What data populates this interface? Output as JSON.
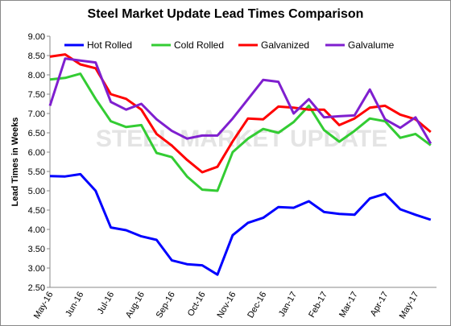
{
  "chart_data": {
    "type": "line",
    "title": "Steel Market Update Lead Times Comparison",
    "y_label": "Lead Times in Weeks",
    "watermark": "STEEL MARKET UPDATE",
    "categories": [
      "May-16",
      null,
      "Jun-16",
      null,
      "Jul-16",
      null,
      "Aug-16",
      null,
      "Sep-16",
      null,
      "Oct-16",
      null,
      "Nov-16",
      null,
      "Dec-16",
      null,
      "Jan-17",
      null,
      "Feb-17",
      null,
      "Mar-17",
      null,
      "Apr-17",
      null,
      "May-17",
      null
    ],
    "series": [
      {
        "name": "Hot Rolled",
        "color": "#0000ff",
        "values": [
          5.38,
          5.37,
          5.43,
          5.0,
          4.05,
          3.98,
          3.82,
          3.73,
          3.2,
          3.1,
          3.07,
          2.83,
          3.85,
          4.17,
          4.3,
          4.58,
          4.56,
          4.73,
          4.45,
          4.4,
          4.38,
          4.8,
          4.92,
          4.52,
          4.38,
          4.25
        ]
      },
      {
        "name": "Cold Rolled",
        "color": "#33cc33",
        "values": [
          7.88,
          7.92,
          8.03,
          7.38,
          6.8,
          6.65,
          6.7,
          5.98,
          5.87,
          5.37,
          5.03,
          5.0,
          6.0,
          6.35,
          6.6,
          6.5,
          6.78,
          7.2,
          6.57,
          6.27,
          6.55,
          6.87,
          6.8,
          6.37,
          6.47,
          6.18
        ]
      },
      {
        "name": "Galvanized",
        "color": "#ff0000",
        "values": [
          8.47,
          8.53,
          8.27,
          8.17,
          7.5,
          7.38,
          7.1,
          6.47,
          6.17,
          5.8,
          5.48,
          5.62,
          6.28,
          6.87,
          6.85,
          7.18,
          7.15,
          7.1,
          7.1,
          6.7,
          6.87,
          7.15,
          7.2,
          6.97,
          6.85,
          6.52
        ]
      },
      {
        "name": "Galvalume",
        "color": "#7f1fcf",
        "values": [
          7.2,
          8.42,
          8.37,
          8.32,
          7.3,
          7.1,
          7.25,
          6.85,
          6.55,
          6.35,
          6.43,
          6.43,
          6.87,
          7.37,
          7.87,
          7.82,
          7.0,
          7.37,
          6.9,
          6.93,
          6.95,
          7.62,
          6.85,
          6.63,
          6.9,
          6.22
        ]
      }
    ],
    "ylim": [
      2.5,
      9.0
    ],
    "yticks": [
      {
        "value": 2.5,
        "label": "2.50"
      },
      {
        "value": 3.0,
        "label": "3.00"
      },
      {
        "value": 3.5,
        "label": "3.50"
      },
      {
        "value": 4.0,
        "label": "4.00"
      },
      {
        "value": 4.5,
        "label": "4.50"
      },
      {
        "value": 5.0,
        "label": "5.00"
      },
      {
        "value": 5.5,
        "label": "5.50"
      },
      {
        "value": 6.0,
        "label": "6.00"
      },
      {
        "value": 6.5,
        "label": "6.50"
      },
      {
        "value": 7.0,
        "label": "7.00"
      },
      {
        "value": 7.5,
        "label": "7.50"
      },
      {
        "value": 8.0,
        "label": "8.00"
      },
      {
        "value": 8.5,
        "label": "8.50"
      },
      {
        "value": 9.0,
        "label": "9.00"
      }
    ],
    "grid": false,
    "legend": "top"
  }
}
